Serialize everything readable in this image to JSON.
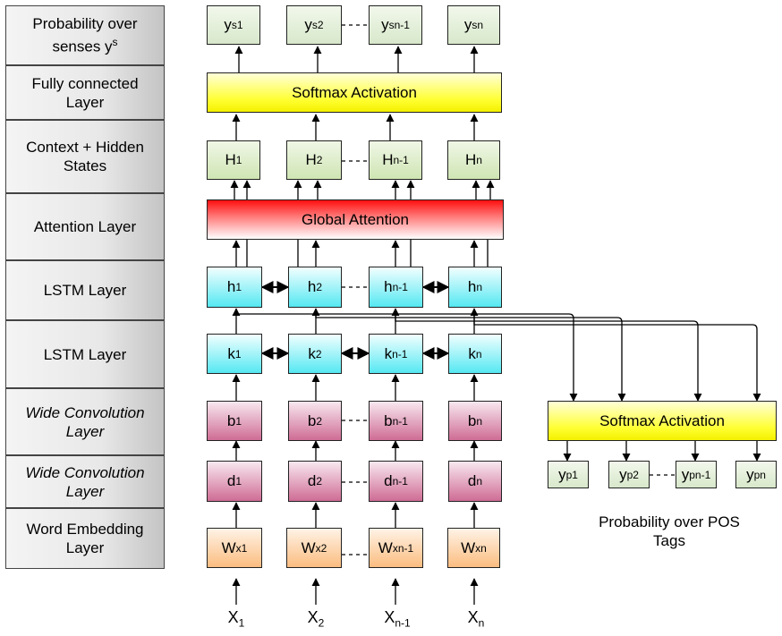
{
  "layer_labels": {
    "probability_senses": "Probability over senses y",
    "probability_senses_sup": "s",
    "fully_connected": "Fully connected Layer",
    "context_hidden": "Context + Hidden States",
    "attention": "Attention Layer",
    "lstm_upper": "LSTM Layer",
    "lstm_lower": "LSTM Layer",
    "wide_conv_upper": "Wide Convolution Layer",
    "wide_conv_lower": "Wide Convolution Layer",
    "word_embedding": "Word Embedding Layer"
  },
  "bars": {
    "softmax_top": "Softmax Activation",
    "global_attention": "Global Attention",
    "softmax_pos": "Softmax Activation"
  },
  "subscripts": [
    "1",
    "2",
    "n-1",
    "n"
  ],
  "symbols": {
    "y": "y",
    "s": "s",
    "p": "p",
    "H": "H",
    "h": "h",
    "k": "k",
    "b": "b",
    "d": "d",
    "W": "W",
    "x_sup": "x",
    "X": "X"
  },
  "caption_pos": "Probability over POS Tags",
  "dash_connector": "- - -",
  "colors": {
    "softmax": "#ffff30",
    "attention": "#ff1010",
    "lstm": "#55e8f2",
    "conv": "#cf6c95",
    "embedding": "#fbbd80",
    "hidden": "#cfe5b3",
    "output": "#d8e8cb"
  }
}
